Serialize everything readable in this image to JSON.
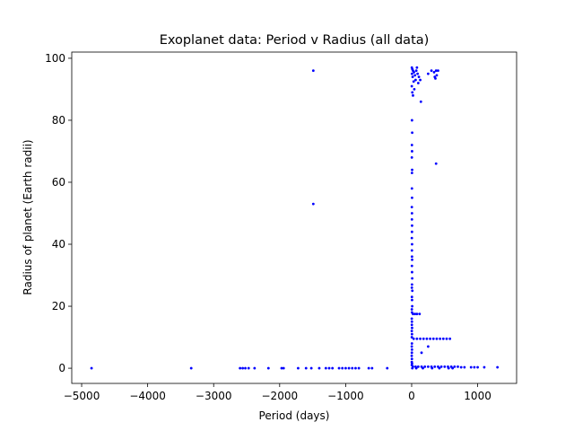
{
  "chart_data": {
    "type": "scatter",
    "title": "Exoplanet data: Period v Radius (all data)",
    "x_label": "Period (days)",
    "y_label": "Radius of planet (Earth radii)",
    "color": "#0000ff",
    "x": [
      -4850,
      -3340,
      -2600,
      -2560,
      -2520,
      -2470,
      -2380,
      -2170,
      -1970,
      -1940,
      -1720,
      -1600,
      -1520,
      -1400,
      -1300,
      -1250,
      -1200,
      -1100,
      -1050,
      -1000,
      -950,
      -900,
      -850,
      -800,
      -650,
      -600,
      -370,
      -1490,
      -1490,
      3,
      10,
      20,
      35,
      5,
      50,
      15,
      70,
      90,
      110,
      60,
      30,
      80,
      130,
      2,
      40,
      100,
      10,
      20,
      140,
      5,
      8,
      4,
      6,
      3,
      7,
      5,
      4,
      6,
      3,
      5,
      4,
      6,
      5,
      3,
      6,
      4,
      5,
      7,
      4,
      6,
      8,
      5,
      3,
      10,
      4,
      6,
      8,
      3,
      5,
      2,
      4,
      3,
      6,
      2,
      5,
      3,
      4,
      2,
      5,
      3,
      1,
      4,
      2,
      6,
      3,
      300,
      340,
      370,
      400,
      350,
      380,
      360,
      250,
      20,
      50,
      80,
      120,
      30,
      80,
      130,
      180,
      230,
      280,
      330,
      380,
      430,
      480,
      530,
      580,
      150,
      250,
      20,
      60,
      100,
      150,
      200,
      250,
      300,
      350,
      400,
      450,
      500,
      550,
      600,
      650,
      700,
      750,
      800,
      900,
      950,
      1000,
      1100,
      1300,
      10,
      70,
      170,
      310,
      420,
      560,
      620,
      370
    ],
    "values": [
      0,
      0,
      0,
      0,
      0,
      0,
      0,
      0,
      0,
      0,
      0,
      0,
      0,
      0,
      0,
      0,
      0,
      0,
      0,
      0,
      0,
      0,
      0,
      0,
      0,
      0,
      0,
      96,
      53,
      97,
      96.5,
      96,
      95.5,
      95,
      94.5,
      94,
      96,
      95,
      94,
      93,
      92.5,
      97,
      93,
      91,
      90,
      92,
      89,
      88,
      86,
      80,
      76,
      72,
      70,
      68,
      64,
      63,
      58,
      55,
      52,
      50,
      48,
      46,
      44,
      42,
      40,
      38,
      36,
      35,
      33,
      31,
      29,
      27,
      26,
      25,
      23,
      22,
      20,
      19,
      18,
      16,
      15,
      14,
      13,
      12,
      11,
      10,
      8,
      7,
      6,
      5,
      4,
      3,
      2,
      1.5,
      1,
      96,
      95.5,
      96,
      96,
      94,
      94.5,
      93.5,
      95,
      17.5,
      17.5,
      17.5,
      17.5,
      9.5,
      9.5,
      9.5,
      9.5,
      9.5,
      9.5,
      9.5,
      9.5,
      9.5,
      9.5,
      9.5,
      9.5,
      5,
      7,
      0.5,
      0.5,
      0.5,
      0.5,
      0.5,
      0.5,
      0.5,
      0.5,
      0.5,
      0.5,
      0.5,
      0.5,
      0.5,
      0.5,
      0.5,
      0.3,
      0.3,
      0.3,
      0.3,
      0.3,
      0.3,
      0.3,
      0,
      0,
      0,
      0,
      0,
      0,
      0,
      66
    ],
    "xlim": [
      -5150,
      1590
    ],
    "ylim": [
      -4.9,
      102
    ],
    "xticks": [
      {
        "value": -5000,
        "label": "−5000"
      },
      {
        "value": -4000,
        "label": "−4000"
      },
      {
        "value": -3000,
        "label": "−3000"
      },
      {
        "value": -2000,
        "label": "−2000"
      },
      {
        "value": -1000,
        "label": "−1000"
      },
      0,
      1000
    ],
    "yticks": [
      0,
      20,
      40,
      60,
      80,
      100
    ]
  }
}
